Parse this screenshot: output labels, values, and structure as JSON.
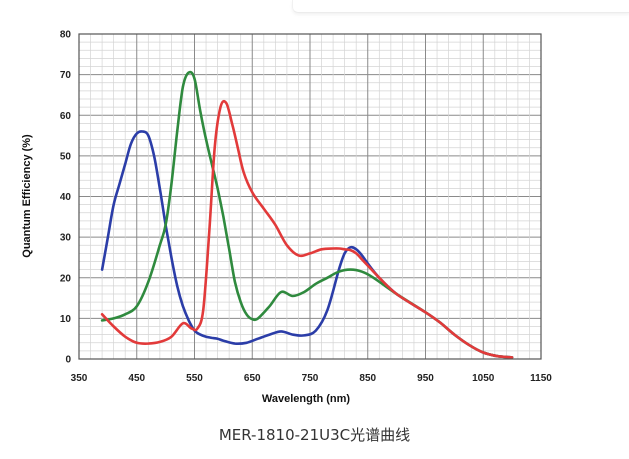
{
  "caption": "MER-1810-21U3C光谱曲线",
  "chart_data": {
    "type": "line",
    "title": "",
    "xlabel": "Wavelength (nm)",
    "ylabel": "Quantum Efficiency (%)",
    "xlim": [
      350,
      1150
    ],
    "ylim": [
      0,
      80
    ],
    "xticks": [
      350,
      450,
      550,
      650,
      750,
      850,
      950,
      1050,
      1150
    ],
    "yticks": [
      0,
      10,
      20,
      30,
      40,
      50,
      60,
      70,
      80
    ],
    "grid": true,
    "legend": "none",
    "series": [
      {
        "color": "#2b3da8",
        "x": [
          390,
          400,
          410,
          420,
          430,
          440,
          450,
          460,
          470,
          480,
          490,
          500,
          510,
          520,
          530,
          540,
          550,
          560,
          570,
          580,
          590,
          600,
          620,
          640,
          660,
          680,
          700,
          720,
          740,
          760,
          780,
          800,
          810,
          820,
          830,
          840,
          850,
          870,
          900,
          950,
          975,
          1000,
          1025,
          1050,
          1075,
          1100
        ],
        "y": [
          22,
          30,
          38,
          43,
          48,
          53,
          55.5,
          56,
          55,
          50,
          42,
          33,
          25,
          18,
          13,
          9.5,
          7,
          6,
          5.5,
          5.2,
          5,
          4.5,
          3.8,
          4,
          5,
          6,
          6.8,
          6,
          5.8,
          7,
          12,
          22,
          26,
          27.5,
          27,
          25.5,
          23.5,
          20,
          16,
          11.5,
          9,
          6,
          3.5,
          1.6,
          0.7,
          0.4
        ]
      },
      {
        "color": "#2f8a3e",
        "x": [
          390,
          410,
          430,
          450,
          470,
          490,
          500,
          510,
          520,
          530,
          540,
          550,
          560,
          570,
          580,
          590,
          600,
          610,
          620,
          630,
          640,
          650,
          660,
          680,
          700,
          720,
          740,
          760,
          780,
          800,
          820,
          840,
          860,
          900,
          950,
          975,
          1000,
          1025,
          1050,
          1075,
          1100
        ],
        "y": [
          9.5,
          10,
          11,
          13,
          19,
          28,
          33,
          43,
          56,
          67,
          70.5,
          69,
          61,
          54,
          48,
          42,
          35,
          27,
          19,
          14,
          11,
          9.8,
          10,
          13,
          16.5,
          15.5,
          16.5,
          18.5,
          20,
          21.5,
          22,
          21.5,
          20,
          16,
          11.5,
          9,
          6,
          3.5,
          1.6,
          0.7,
          0.4
        ]
      },
      {
        "color": "#e23a3a",
        "x": [
          390,
          410,
          430,
          450,
          470,
          490,
          510,
          530,
          545,
          555,
          565,
          575,
          585,
          595,
          605,
          615,
          625,
          635,
          650,
          670,
          690,
          710,
          730,
          750,
          770,
          790,
          800,
          810,
          820,
          830,
          840,
          850,
          870,
          900,
          950,
          975,
          1000,
          1025,
          1050,
          1075,
          1100
        ],
        "y": [
          11,
          8,
          5.5,
          4,
          3.8,
          4.2,
          5.5,
          8.8,
          7.5,
          7.5,
          12,
          30,
          52,
          62,
          63,
          58,
          52,
          46,
          41,
          37,
          33,
          28,
          25.5,
          26,
          27,
          27.2,
          27.2,
          27,
          26.8,
          26,
          24.5,
          23,
          20,
          16,
          11.5,
          9,
          6,
          3.5,
          1.6,
          0.7,
          0.4
        ]
      }
    ]
  }
}
